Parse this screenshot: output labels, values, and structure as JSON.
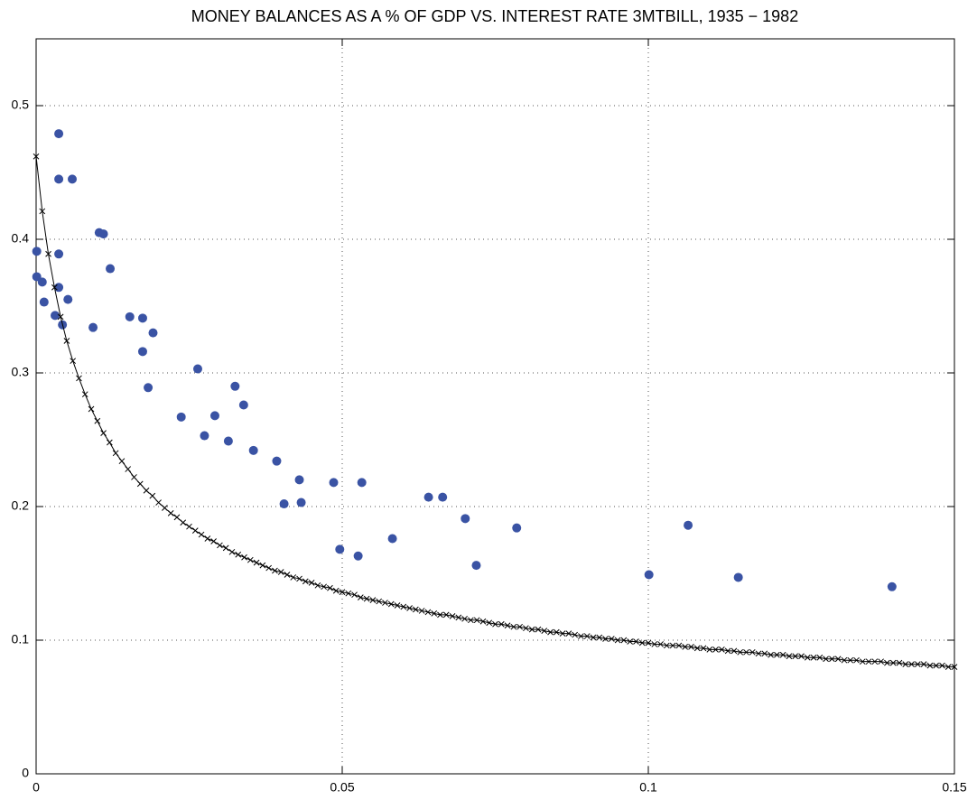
{
  "chart_data": {
    "type": "scatter",
    "title": "MONEY BALANCES AS A % OF GDP VS. INTEREST RATE 3MTBILL, 1935 − 1982",
    "xlim": [
      0,
      0.15
    ],
    "xticks": [
      0,
      0.05,
      0.1,
      0.15
    ],
    "ylim": [
      0,
      0.55
    ],
    "yticks": [
      0,
      0.1,
      0.2,
      0.3,
      0.4,
      0.5
    ],
    "grid": true,
    "series": [
      {
        "color": "#3a53a4",
        "marker": "circle",
        "line": false,
        "x": [
          0.0001,
          0.0001,
          0.001,
          0.0013,
          0.0037,
          0.0037,
          0.0037,
          0.0037,
          0.0031,
          0.0043,
          0.0052,
          0.0059,
          0.0093,
          0.0103,
          0.011,
          0.0121,
          0.0153,
          0.0174,
          0.0174,
          0.0191,
          0.0183,
          0.0237,
          0.0264,
          0.0275,
          0.0292,
          0.0314,
          0.0325,
          0.0339,
          0.0355,
          0.0393,
          0.0405,
          0.043,
          0.0433,
          0.0486,
          0.0496,
          0.0526,
          0.0532,
          0.0582,
          0.0641,
          0.0664,
          0.0701,
          0.0719,
          0.0785,
          0.1001,
          0.1065,
          0.1147,
          0.1398
        ],
        "values": [
          0.372,
          0.391,
          0.368,
          0.353,
          0.479,
          0.445,
          0.389,
          0.364,
          0.343,
          0.336,
          0.355,
          0.445,
          0.334,
          0.405,
          0.404,
          0.378,
          0.342,
          0.341,
          0.316,
          0.33,
          0.289,
          0.267,
          0.303,
          0.253,
          0.268,
          0.249,
          0.29,
          0.276,
          0.242,
          0.234,
          0.202,
          0.22,
          0.203,
          0.218,
          0.168,
          0.163,
          0.218,
          0.176,
          0.207,
          0.207,
          0.191,
          0.156,
          0.184,
          0.149,
          0.186,
          0.147,
          0.14
        ]
      },
      {
        "color": "#000000",
        "marker": "x",
        "line": true,
        "x": [
          0,
          0.001,
          0.002,
          0.003,
          0.004,
          0.005,
          0.006,
          0.007,
          0.008,
          0.009,
          0.01,
          0.011,
          0.012,
          0.013,
          0.014,
          0.015,
          0.016,
          0.017,
          0.018,
          0.019,
          0.02,
          0.021,
          0.022,
          0.023,
          0.024,
          0.025,
          0.026,
          0.027,
          0.028,
          0.029,
          0.03,
          0.031,
          0.032,
          0.033,
          0.034,
          0.035,
          0.036,
          0.037,
          0.038,
          0.039,
          0.04,
          0.041,
          0.042,
          0.043,
          0.044,
          0.045,
          0.046,
          0.047,
          0.048,
          0.049,
          0.05,
          0.051,
          0.052,
          0.053,
          0.054,
          0.055,
          0.056,
          0.057,
          0.058,
          0.059,
          0.06,
          0.061,
          0.062,
          0.063,
          0.064,
          0.065,
          0.066,
          0.067,
          0.068,
          0.069,
          0.07,
          0.071,
          0.072,
          0.073,
          0.074,
          0.075,
          0.076,
          0.077,
          0.078,
          0.079,
          0.08,
          0.081,
          0.082,
          0.083,
          0.084,
          0.085,
          0.086,
          0.087,
          0.088,
          0.089,
          0.09,
          0.091,
          0.092,
          0.093,
          0.094,
          0.095,
          0.096,
          0.097,
          0.098,
          0.099,
          0.1,
          0.101,
          0.102,
          0.103,
          0.104,
          0.105,
          0.106,
          0.107,
          0.108,
          0.109,
          0.11,
          0.111,
          0.112,
          0.113,
          0.114,
          0.115,
          0.116,
          0.117,
          0.118,
          0.119,
          0.12,
          0.121,
          0.122,
          0.123,
          0.124,
          0.125,
          0.126,
          0.127,
          0.128,
          0.129,
          0.13,
          0.131,
          0.132,
          0.133,
          0.134,
          0.135,
          0.136,
          0.137,
          0.138,
          0.139,
          0.14,
          0.141,
          0.142,
          0.143,
          0.144,
          0.145,
          0.146,
          0.147,
          0.148,
          0.149,
          0.15
        ],
        "values": [
          0.462,
          0.421,
          0.389,
          0.364,
          0.342,
          0.324,
          0.309,
          0.296,
          0.284,
          0.273,
          0.264,
          0.255,
          0.248,
          0.24,
          0.234,
          0.228,
          0.222,
          0.217,
          0.212,
          0.208,
          0.203,
          0.199,
          0.195,
          0.192,
          0.188,
          0.185,
          0.182,
          0.179,
          0.176,
          0.174,
          0.171,
          0.169,
          0.166,
          0.164,
          0.162,
          0.16,
          0.158,
          0.156,
          0.154,
          0.152,
          0.151,
          0.149,
          0.147,
          0.146,
          0.144,
          0.143,
          0.141,
          0.14,
          0.139,
          0.137,
          0.136,
          0.135,
          0.134,
          0.132,
          0.131,
          0.13,
          0.129,
          0.128,
          0.127,
          0.126,
          0.125,
          0.124,
          0.123,
          0.122,
          0.121,
          0.12,
          0.119,
          0.119,
          0.118,
          0.117,
          0.116,
          0.115,
          0.115,
          0.114,
          0.113,
          0.112,
          0.112,
          0.111,
          0.11,
          0.11,
          0.109,
          0.108,
          0.108,
          0.107,
          0.106,
          0.106,
          0.105,
          0.105,
          0.104,
          0.103,
          0.103,
          0.102,
          0.102,
          0.101,
          0.101,
          0.1,
          0.1,
          0.099,
          0.099,
          0.098,
          0.098,
          0.097,
          0.097,
          0.096,
          0.096,
          0.096,
          0.095,
          0.095,
          0.094,
          0.094,
          0.093,
          0.093,
          0.093,
          0.092,
          0.092,
          0.091,
          0.091,
          0.091,
          0.09,
          0.09,
          0.089,
          0.089,
          0.089,
          0.088,
          0.088,
          0.088,
          0.087,
          0.087,
          0.087,
          0.086,
          0.086,
          0.086,
          0.085,
          0.085,
          0.085,
          0.084,
          0.084,
          0.084,
          0.084,
          0.083,
          0.083,
          0.083,
          0.082,
          0.082,
          0.082,
          0.082,
          0.081,
          0.081,
          0.081,
          0.08,
          0.08
        ]
      }
    ]
  }
}
